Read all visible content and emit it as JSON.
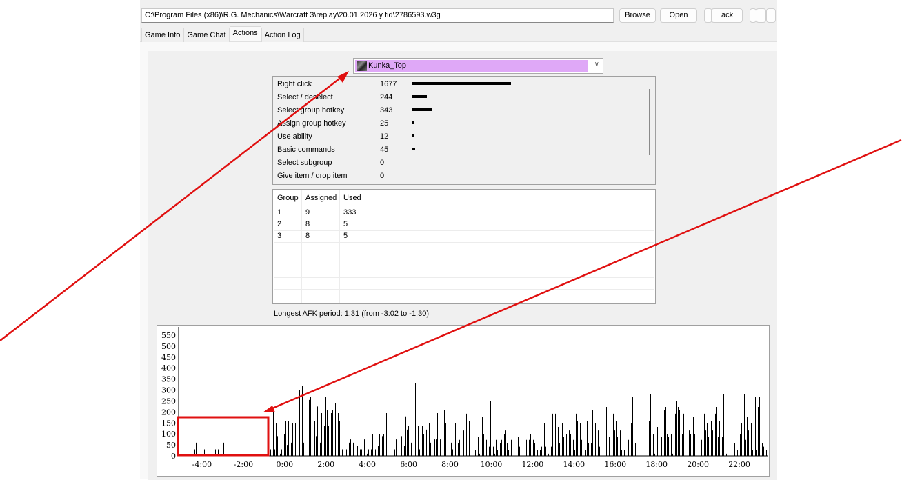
{
  "toolbar": {
    "path": "C:\\Program Files (x86)\\R.G. Mechanics\\Warcraft 3\\replay\\20.01.2026 y fid\\2786593.w3g",
    "browse": "Browse",
    "open": "Open",
    "back_partial": "ack"
  },
  "tabs": [
    {
      "label": "Game Info"
    },
    {
      "label": "Game Chat"
    },
    {
      "label": "Actions",
      "active": true
    },
    {
      "label": "Action Log"
    }
  ],
  "player_select": {
    "value": "Kunka_Top",
    "color": "#dfa8f7"
  },
  "action_stats": [
    {
      "label": "Right click",
      "value": 1677
    },
    {
      "label": "Select / deselect",
      "value": 244
    },
    {
      "label": "Select group hotkey",
      "value": 343
    },
    {
      "label": "Assign group hotkey",
      "value": 25
    },
    {
      "label": "Use ability",
      "value": 12
    },
    {
      "label": "Basic commands",
      "value": 45
    },
    {
      "label": "Select subgroup",
      "value": 0
    },
    {
      "label": "Give item / drop item",
      "value": 0
    }
  ],
  "groups": {
    "headers": [
      "Group",
      "Assigned",
      "Used"
    ],
    "rows": [
      [
        "1",
        "9",
        "333"
      ],
      [
        "2",
        "8",
        "5"
      ],
      [
        "3",
        "8",
        "5"
      ]
    ]
  },
  "afk": "Longest AFK period: 1:31 (from -3:02 to -1:30)",
  "annotation_color": "#e01010",
  "chart_data": {
    "type": "bar",
    "x_ticks": [
      "-4:00",
      "-2:00",
      "0:00",
      "2:00",
      "4:00",
      "6:00",
      "8:00",
      "10:00",
      "12:00",
      "14:00",
      "16:00",
      "18:00",
      "20:00",
      "22:00"
    ],
    "y_ticks": [
      "0",
      "50",
      "100",
      "150",
      "200",
      "250",
      "300",
      "350",
      "400",
      "450",
      "500",
      "550"
    ],
    "xlim_minutes": [
      -5.2,
      23.3
    ],
    "ylim": [
      0,
      590
    ],
    "grid": false,
    "x": {
      "start": "-4:46",
      "step_seconds": 4
    },
    "values": [
      60,
      0,
      0,
      30,
      0,
      30,
      60,
      0,
      0,
      0,
      0,
      0,
      30,
      0,
      0,
      0,
      0,
      0,
      0,
      0,
      30,
      30,
      30,
      0,
      0,
      0,
      60,
      0,
      0,
      0,
      0,
      0,
      0,
      0,
      0,
      0,
      0,
      0,
      0,
      0,
      0,
      0,
      0,
      0,
      0,
      0,
      0,
      0,
      30,
      0,
      0,
      0,
      0,
      0,
      0,
      0,
      0,
      0,
      0,
      0,
      30,
      555,
      210,
      30,
      150,
      90,
      150,
      10,
      30,
      100,
      100,
      160,
      50,
      160,
      270,
      60,
      150,
      120,
      150,
      60,
      0,
      300,
      160,
      320,
      60,
      0,
      0,
      100,
      255,
      270,
      60,
      0,
      160,
      90,
      225,
      100,
      60,
      195,
      150,
      135,
      270,
      210,
      135,
      210,
      195,
      210,
      195,
      240,
      255,
      195,
      160,
      90,
      30,
      0,
      30,
      30,
      0,
      60,
      75,
      45,
      60,
      0,
      0,
      45,
      0,
      30,
      30,
      60,
      75,
      0,
      10,
      30,
      30,
      30,
      100,
      150,
      30,
      30,
      45,
      100,
      60,
      90,
      100,
      60,
      195,
      195,
      0,
      0,
      0,
      0,
      30,
      75,
      0,
      0,
      0,
      90,
      30,
      45,
      180,
      120,
      135,
      210,
      60,
      0,
      60,
      330,
      225,
      135,
      30,
      30,
      135,
      100,
      75,
      120,
      30,
      150,
      60,
      0,
      0,
      75,
      75,
      195,
      120,
      75,
      0,
      30,
      210,
      150,
      0,
      0,
      0,
      60,
      30,
      30,
      148,
      58,
      58,
      73,
      116,
      0,
      116,
      176,
      192,
      100,
      160,
      0,
      0,
      0,
      58,
      26,
      42,
      85,
      10,
      10,
      176,
      100,
      26,
      73,
      10,
      42,
      251,
      42,
      42,
      10,
      73,
      26,
      26,
      58,
      73,
      236,
      100,
      116,
      58,
      26,
      116,
      73,
      0,
      0,
      0,
      116,
      85,
      42,
      10,
      0,
      0,
      85,
      73,
      223,
      73,
      100,
      0,
      73,
      58,
      0,
      26,
      116,
      26,
      42,
      26,
      148,
      42,
      0,
      10,
      148,
      42,
      192,
      148,
      192,
      100,
      132,
      58,
      160,
      148,
      85,
      100,
      100,
      116,
      116,
      100,
      26,
      73,
      26,
      192,
      160,
      132,
      148,
      73,
      58,
      0,
      26,
      160,
      58,
      100,
      58,
      208,
      10,
      148,
      236,
      116,
      42,
      0,
      0,
      0,
      58,
      223,
      42,
      85,
      0,
      73,
      192,
      116,
      160,
      85,
      148,
      116,
      26,
      176,
      26,
      0,
      0,
      73,
      176,
      148,
      267,
      0,
      58,
      42,
      0,
      0,
      0,
      0,
      0,
      0,
      0,
      116,
      160,
      283,
      314,
      100,
      10,
      0,
      132,
      10,
      0,
      85,
      148,
      208,
      223,
      100,
      85,
      223,
      100,
      10,
      208,
      192,
      251,
      223,
      208,
      223,
      100,
      192,
      0,
      0,
      26,
      116,
      100,
      10,
      176,
      100,
      100,
      0,
      58,
      0,
      73,
      100,
      192,
      116,
      148,
      85,
      148,
      160,
      116,
      192,
      192,
      223,
      85,
      160,
      116,
      85,
      283,
      100,
      10,
      26,
      0,
      0,
      0,
      0,
      58,
      42,
      26,
      73,
      100,
      148,
      160,
      283,
      73,
      176,
      116,
      148,
      148,
      26,
      208,
      267,
      26,
      223,
      267,
      160,
      58,
      42,
      10,
      26,
      10
    ]
  }
}
